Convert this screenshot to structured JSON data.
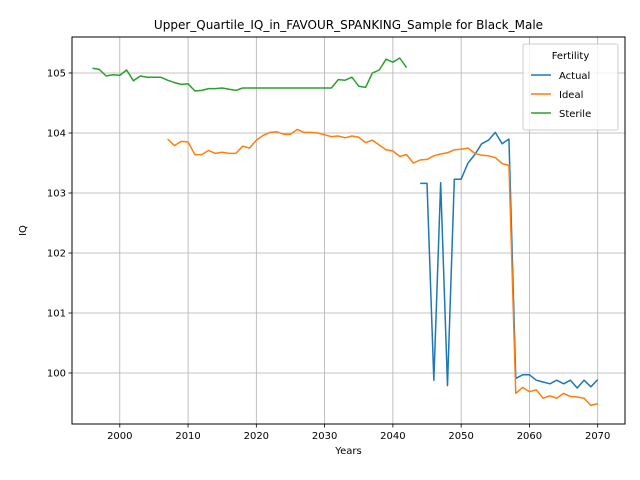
{
  "chart_data": {
    "type": "line",
    "title": "Upper_Quartile_IQ_in_FAVOUR_SPANKING_Sample for Black_Male",
    "xlabel": "Years",
    "ylabel": "IQ",
    "xlim": [
      1993,
      2074
    ],
    "ylim": [
      99.15,
      105.6
    ],
    "xticks": [
      2000,
      2010,
      2020,
      2030,
      2040,
      2050,
      2060,
      2070
    ],
    "yticks": [
      100,
      101,
      102,
      103,
      104,
      105
    ],
    "grid": true,
    "legend": {
      "title": "Fertility",
      "placement": "upper right"
    },
    "series": [
      {
        "name": "Actual",
        "color": "#1f77b4",
        "points": [
          [
            2044,
            103.16
          ],
          [
            2045,
            103.16
          ],
          [
            2046,
            99.88
          ],
          [
            2047,
            103.17
          ],
          [
            2048,
            99.79
          ],
          [
            2049,
            103.23
          ],
          [
            2050,
            103.23
          ],
          [
            2051,
            103.5
          ],
          [
            2052,
            103.64
          ],
          [
            2053,
            103.82
          ],
          [
            2054,
            103.88
          ],
          [
            2055,
            104.01
          ],
          [
            2056,
            103.82
          ],
          [
            2057,
            103.9
          ],
          [
            2058,
            99.91
          ],
          [
            2059,
            99.97
          ],
          [
            2060,
            99.97
          ],
          [
            2061,
            99.88
          ],
          [
            2062,
            99.85
          ],
          [
            2063,
            99.82
          ],
          [
            2064,
            99.88
          ],
          [
            2065,
            99.82
          ],
          [
            2066,
            99.88
          ],
          [
            2067,
            99.75
          ],
          [
            2068,
            99.88
          ],
          [
            2069,
            99.77
          ],
          [
            2070,
            99.89
          ]
        ]
      },
      {
        "name": "Ideal",
        "color": "#ff7f0e",
        "points": [
          [
            2007,
            103.9
          ],
          [
            2008,
            103.79
          ],
          [
            2009,
            103.86
          ],
          [
            2010,
            103.85
          ],
          [
            2011,
            103.64
          ],
          [
            2012,
            103.64
          ],
          [
            2013,
            103.71
          ],
          [
            2014,
            103.66
          ],
          [
            2015,
            103.68
          ],
          [
            2016,
            103.66
          ],
          [
            2017,
            103.66
          ],
          [
            2018,
            103.78
          ],
          [
            2019,
            103.75
          ],
          [
            2020,
            103.88
          ],
          [
            2021,
            103.96
          ],
          [
            2022,
            104.01
          ],
          [
            2023,
            104.02
          ],
          [
            2024,
            103.98
          ],
          [
            2025,
            103.98
          ],
          [
            2026,
            104.06
          ],
          [
            2027,
            104.01
          ],
          [
            2028,
            104.01
          ],
          [
            2029,
            104.0
          ],
          [
            2030,
            103.97
          ],
          [
            2031,
            103.94
          ],
          [
            2032,
            103.95
          ],
          [
            2033,
            103.92
          ],
          [
            2034,
            103.95
          ],
          [
            2035,
            103.93
          ],
          [
            2036,
            103.84
          ],
          [
            2037,
            103.88
          ],
          [
            2038,
            103.8
          ],
          [
            2039,
            103.72
          ],
          [
            2040,
            103.7
          ],
          [
            2041,
            103.61
          ],
          [
            2042,
            103.64
          ],
          [
            2043,
            103.5
          ],
          [
            2044,
            103.55
          ],
          [
            2045,
            103.56
          ],
          [
            2046,
            103.62
          ],
          [
            2047,
            103.65
          ],
          [
            2048,
            103.67
          ],
          [
            2049,
            103.72
          ],
          [
            2050,
            103.73
          ],
          [
            2051,
            103.75
          ],
          [
            2052,
            103.66
          ],
          [
            2053,
            103.63
          ],
          [
            2054,
            103.62
          ],
          [
            2055,
            103.59
          ],
          [
            2056,
            103.49
          ],
          [
            2057,
            103.46
          ],
          [
            2058,
            99.66
          ],
          [
            2059,
            99.76
          ],
          [
            2060,
            99.69
          ],
          [
            2061,
            99.72
          ],
          [
            2062,
            99.58
          ],
          [
            2063,
            99.62
          ],
          [
            2064,
            99.58
          ],
          [
            2065,
            99.66
          ],
          [
            2066,
            99.61
          ],
          [
            2067,
            99.6
          ],
          [
            2068,
            99.58
          ],
          [
            2069,
            99.46
          ],
          [
            2070,
            99.49
          ]
        ]
      },
      {
        "name": "Sterile",
        "color": "#2ca02c",
        "points": [
          [
            1996,
            105.08
          ],
          [
            1997,
            105.06
          ],
          [
            1998,
            104.95
          ],
          [
            1999,
            104.97
          ],
          [
            2000,
            104.96
          ],
          [
            2001,
            105.05
          ],
          [
            2002,
            104.87
          ],
          [
            2003,
            104.95
          ],
          [
            2004,
            104.93
          ],
          [
            2005,
            104.93
          ],
          [
            2006,
            104.93
          ],
          [
            2007,
            104.88
          ],
          [
            2008,
            104.84
          ],
          [
            2009,
            104.81
          ],
          [
            2010,
            104.82
          ],
          [
            2011,
            104.7
          ],
          [
            2012,
            104.71
          ],
          [
            2013,
            104.74
          ],
          [
            2014,
            104.74
          ],
          [
            2015,
            104.75
          ],
          [
            2016,
            104.73
          ],
          [
            2017,
            104.71
          ],
          [
            2018,
            104.75
          ],
          [
            2019,
            104.75
          ],
          [
            2020,
            104.75
          ],
          [
            2021,
            104.75
          ],
          [
            2022,
            104.75
          ],
          [
            2023,
            104.75
          ],
          [
            2024,
            104.75
          ],
          [
            2025,
            104.75
          ],
          [
            2026,
            104.75
          ],
          [
            2027,
            104.75
          ],
          [
            2028,
            104.75
          ],
          [
            2029,
            104.75
          ],
          [
            2030,
            104.75
          ],
          [
            2031,
            104.75
          ],
          [
            2032,
            104.89
          ],
          [
            2033,
            104.88
          ],
          [
            2034,
            104.93
          ],
          [
            2035,
            104.78
          ],
          [
            2036,
            104.76
          ],
          [
            2037,
            105.0
          ],
          [
            2038,
            105.05
          ],
          [
            2039,
            105.23
          ],
          [
            2040,
            105.18
          ],
          [
            2041,
            105.25
          ],
          [
            2042,
            105.09
          ]
        ]
      }
    ]
  }
}
